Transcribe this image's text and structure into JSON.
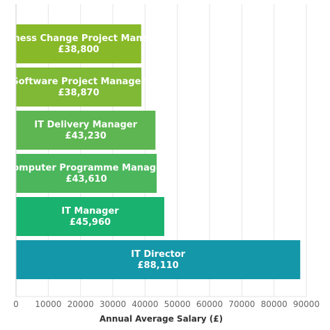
{
  "chart_data": {
    "type": "bar",
    "orientation": "horizontal",
    "categories": [
      "Business Change Project Manager",
      "Software Project Manager",
      "IT Delivery Manager",
      "Computer Programme Manager",
      "IT Manager",
      "IT Director"
    ],
    "values": [
      38800,
      38870,
      43230,
      43610,
      45960,
      88110
    ],
    "value_labels": [
      "£38,800",
      "£38,870",
      "£43,230",
      "£43,610",
      "£45,960",
      "£88,110"
    ],
    "colors": [
      "#88b928",
      "#7fb935",
      "#5db651",
      "#4bb65b",
      "#19b26e",
      "#1497a9"
    ],
    "xlabel": "Annual Average Salary (£)",
    "ylabel": "",
    "xlim": [
      0,
      90000
    ],
    "xticks": [
      0,
      10000,
      20000,
      30000,
      40000,
      50000,
      60000,
      70000,
      80000,
      90000
    ],
    "grid": true
  }
}
